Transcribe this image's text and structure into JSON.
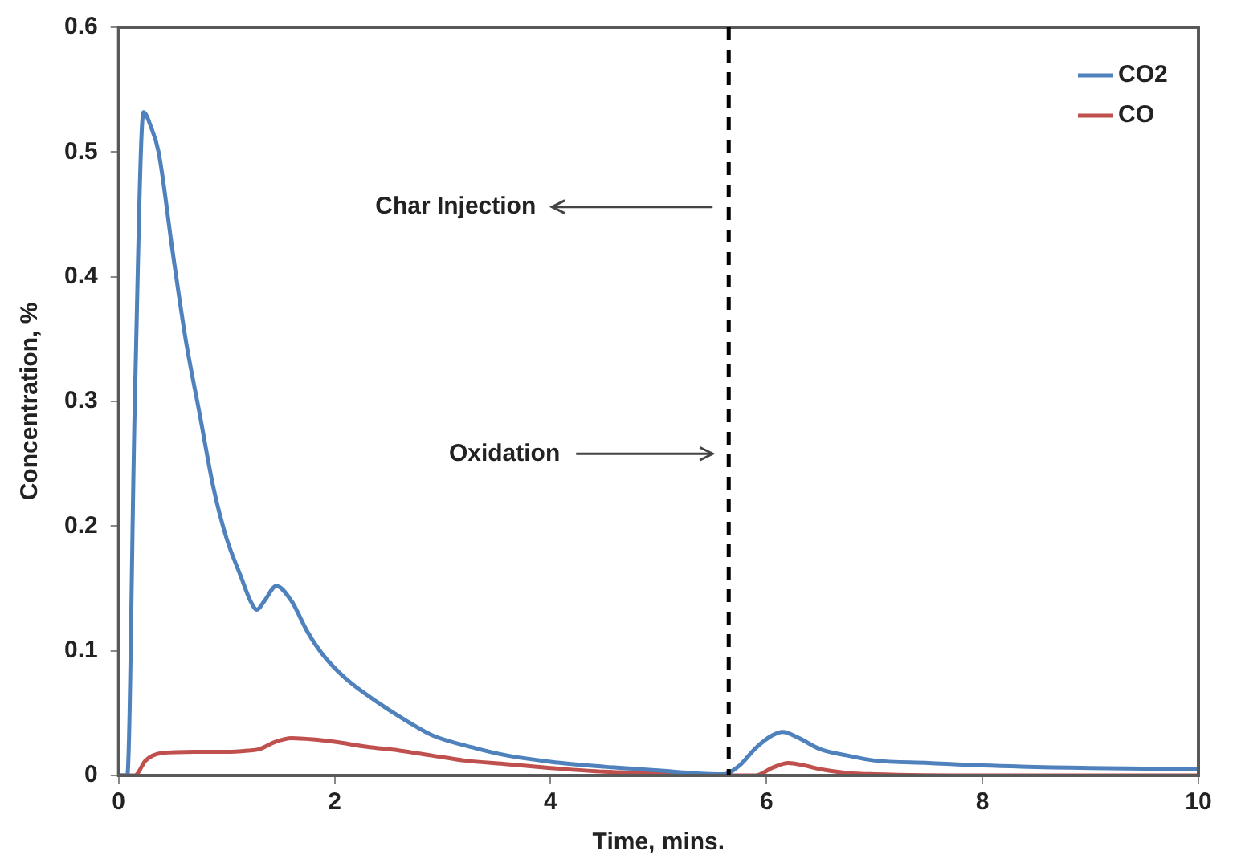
{
  "chart_data": {
    "type": "line",
    "xlabel": "Time, mins.",
    "ylabel": "Concentration, %",
    "xlim": [
      0,
      10
    ],
    "xticks": [
      0,
      2,
      4,
      6,
      8,
      10
    ],
    "ylim": [
      0,
      0.6
    ],
    "yticks": [
      0,
      0.1,
      0.2,
      0.3,
      0.4,
      0.5,
      0.6
    ],
    "grid": false,
    "legend": "top right",
    "marker": "none",
    "line_style": "solid",
    "series": [
      {
        "name": "CO2",
        "color": "#4f81bd",
        "x": [
          0,
          0.08,
          0.15,
          0.23,
          0.3,
          0.37,
          0.5,
          0.62,
          0.75,
          0.88,
          1.0,
          1.13,
          1.22,
          1.28,
          1.35,
          1.46,
          1.6,
          1.75,
          1.89,
          2.1,
          2.41,
          2.7,
          2.91,
          3.3,
          3.6,
          4.0,
          4.5,
          5.0,
          5.3,
          5.6,
          5.75,
          5.9,
          6.05,
          6.15,
          6.3,
          6.5,
          6.75,
          7.0,
          7.5,
          8.0,
          9.0,
          10.0
        ],
        "values": [
          0,
          0,
          0.3,
          0.532,
          0.52,
          0.5,
          0.42,
          0.35,
          0.29,
          0.23,
          0.19,
          0.16,
          0.14,
          0.133,
          0.14,
          0.152,
          0.14,
          0.115,
          0.097,
          0.078,
          0.058,
          0.042,
          0.032,
          0.022,
          0.016,
          0.011,
          0.007,
          0.004,
          0.002,
          0.001,
          0.008,
          0.022,
          0.032,
          0.035,
          0.03,
          0.021,
          0.016,
          0.012,
          0.01,
          0.008,
          0.006,
          0.005
        ]
      },
      {
        "name": "CO",
        "color": "#c0504d",
        "x": [
          0,
          0.15,
          0.25,
          0.4,
          0.7,
          1.0,
          1.2,
          1.3,
          1.45,
          1.6,
          1.8,
          2.0,
          2.3,
          2.6,
          2.9,
          3.2,
          3.6,
          4.0,
          4.5,
          5.0,
          5.6,
          5.9,
          6.05,
          6.2,
          6.35,
          6.5,
          6.75,
          7.0,
          8.0,
          10.0
        ],
        "values": [
          0,
          0,
          0.012,
          0.018,
          0.019,
          0.019,
          0.02,
          0.021,
          0.027,
          0.03,
          0.029,
          0.027,
          0.023,
          0.02,
          0.016,
          0.012,
          0.009,
          0.006,
          0.003,
          0.002,
          0,
          0,
          0.006,
          0.01,
          0.008,
          0.005,
          0.002,
          0.001,
          0,
          0
        ]
      }
    ],
    "ref_lines": [
      {
        "axis": "x",
        "value": 5.65,
        "color": "#000000",
        "line_style": "dashed"
      }
    ],
    "annotations": [
      "Char Injection",
      "Oxidation"
    ]
  }
}
